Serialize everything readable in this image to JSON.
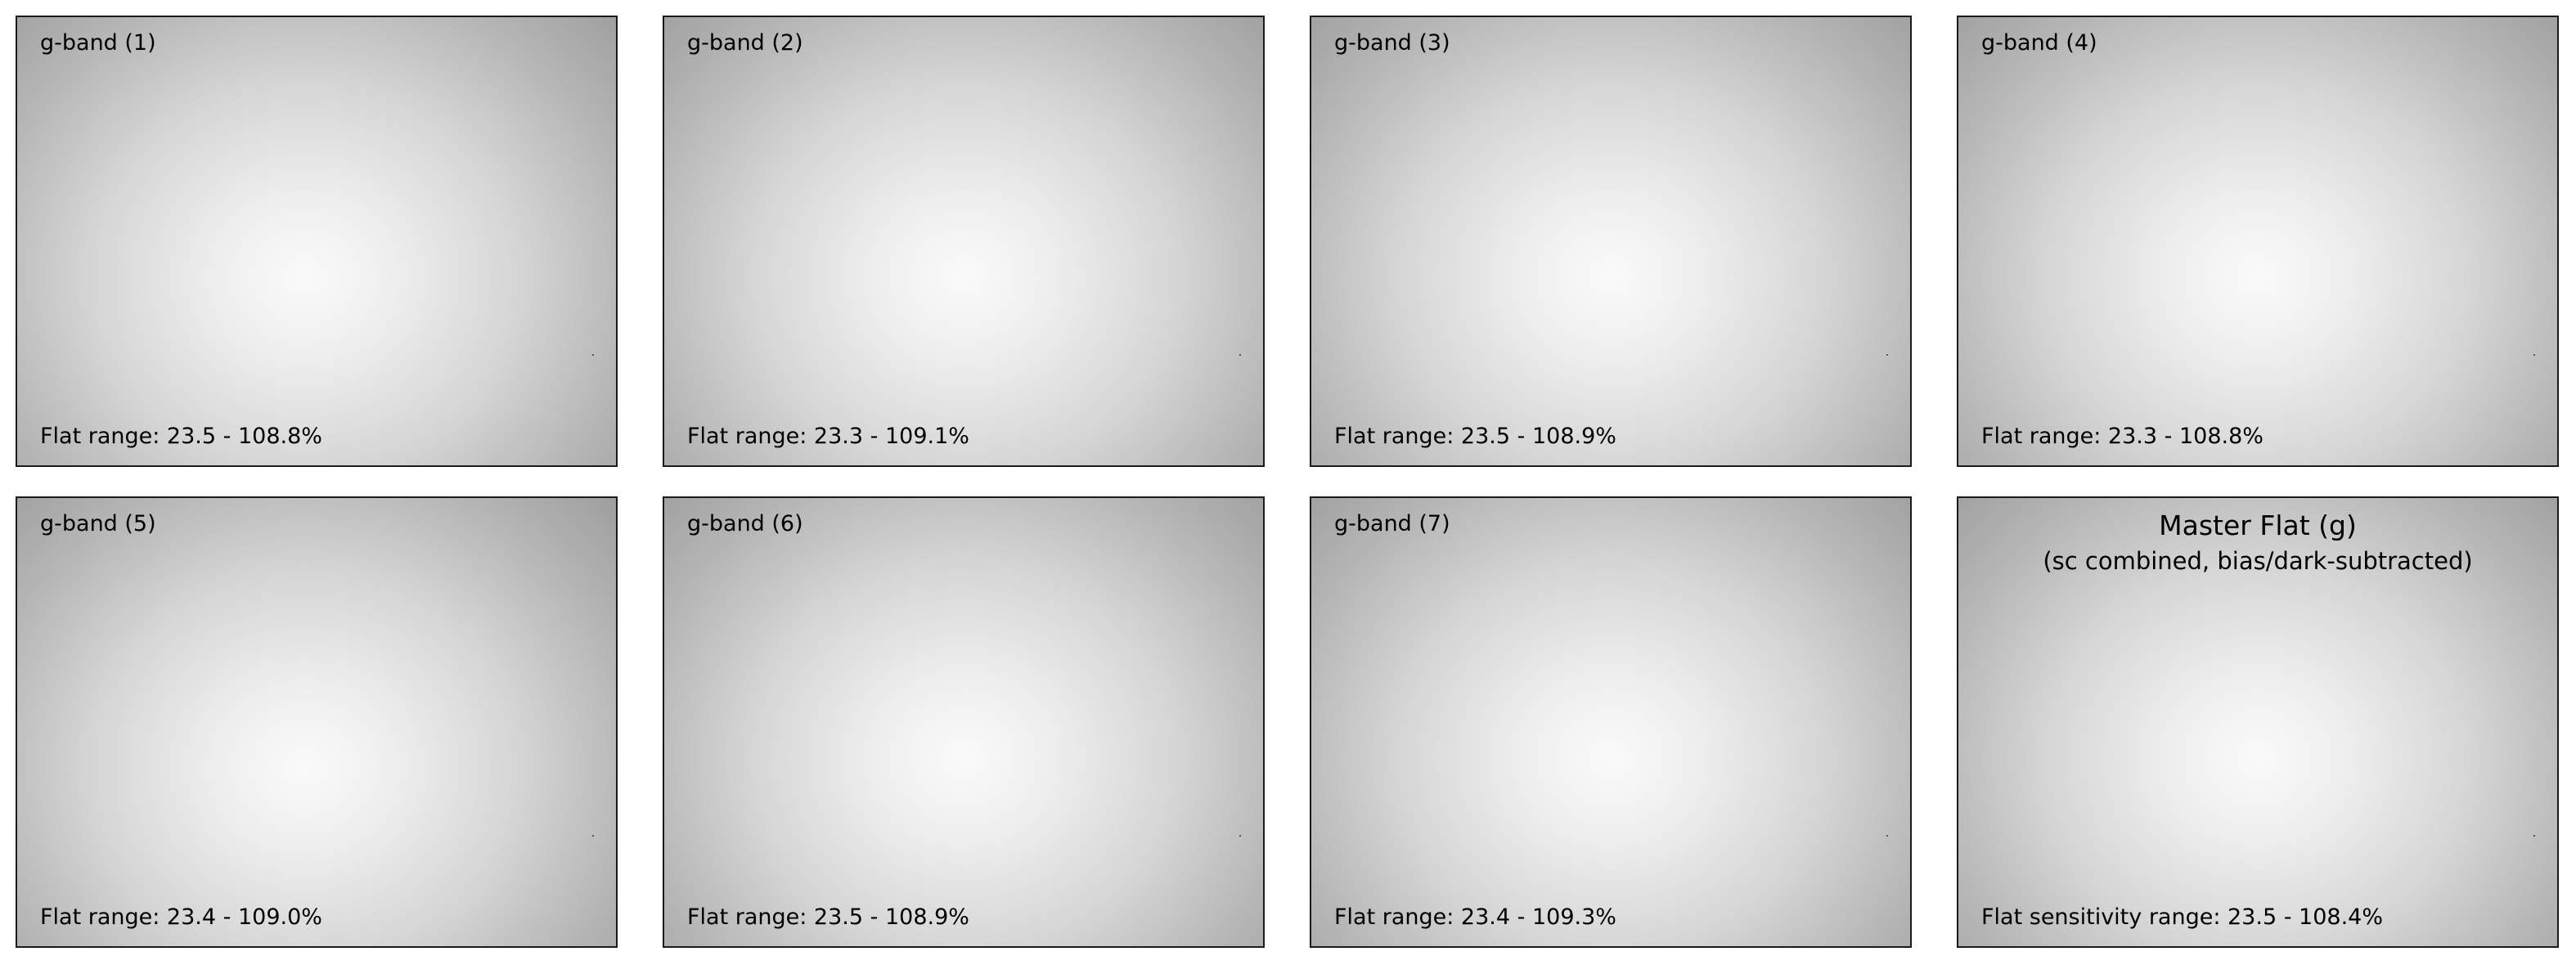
{
  "panels": [
    {
      "title": "g-band (1)",
      "range": "Flat range: 23.5 - 108.8%",
      "center": "48% 58%"
    },
    {
      "title": "g-band (2)",
      "range": "Flat range: 23.3 - 109.1%",
      "center": "50% 58%"
    },
    {
      "title": "g-band (3)",
      "range": "Flat range: 23.5 - 108.9%",
      "center": "50% 58%"
    },
    {
      "title": "g-band (4)",
      "range": "Flat range: 23.3 - 108.8%",
      "center": "50% 58%"
    },
    {
      "title": "g-band (5)",
      "range": "Flat range: 23.4 - 109.0%",
      "center": "48% 60%"
    },
    {
      "title": "g-band (6)",
      "range": "Flat range: 23.5 - 108.9%",
      "center": "50% 58%"
    },
    {
      "title": "g-band (7)",
      "range": "Flat range: 23.4 - 109.3%",
      "center": "50% 58%"
    }
  ],
  "master": {
    "title": "Master Flat (g)",
    "subtitle": "(sc combined, bias/dark-subtracted)",
    "range": "Flat sensitivity range: 23.5 - 108.4%",
    "center": "50% 58%"
  }
}
